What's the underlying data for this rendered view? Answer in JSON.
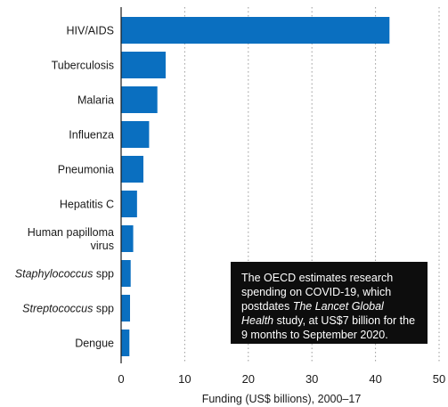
{
  "chart_data": {
    "type": "bar",
    "orientation": "horizontal",
    "categories": [
      "HIV/AIDS",
      "Tuberculosis",
      "Malaria",
      "Influenza",
      "Pneumonia",
      "Hepatitis C",
      "Human papilloma virus",
      "Staphylococcus spp",
      "Streptococcus spp",
      "Dengue"
    ],
    "category_lines": [
      [
        {
          "text": "HIV/AIDS",
          "italic": false
        }
      ],
      [
        {
          "text": "Tuberculosis",
          "italic": false
        }
      ],
      [
        {
          "text": "Malaria",
          "italic": false
        }
      ],
      [
        {
          "text": "Influenza",
          "italic": false
        }
      ],
      [
        {
          "text": "Pneumonia",
          "italic": false
        }
      ],
      [
        {
          "text": "Hepatitis C",
          "italic": false
        }
      ],
      [
        {
          "text": "Human papilloma",
          "italic": false
        },
        {
          "text": "virus",
          "italic": false
        }
      ],
      [
        {
          "text": "Staphylococcus",
          "italic": true,
          "suffix": " spp"
        }
      ],
      [
        {
          "text": "Streptococcus",
          "italic": true,
          "suffix": " spp"
        }
      ],
      [
        {
          "text": "Dengue",
          "italic": false
        }
      ]
    ],
    "values": [
      42.2,
      7.0,
      5.7,
      4.4,
      3.5,
      2.5,
      1.9,
      1.5,
      1.4,
      1.3
    ],
    "xlabel": "Funding (US$ billions), 2000–17",
    "ylabel": "",
    "xlim": [
      0,
      50
    ],
    "xticks": [
      0,
      10,
      20,
      30,
      40,
      50
    ],
    "grid": true,
    "bar_color": "#0a6fc0"
  },
  "note": {
    "before": "The OECD estimates research spending on COVID-19, which postdates ",
    "italic": "The Lancet Global Health",
    "after": " study, at US$7 billion for the 9 months to September 2020."
  }
}
